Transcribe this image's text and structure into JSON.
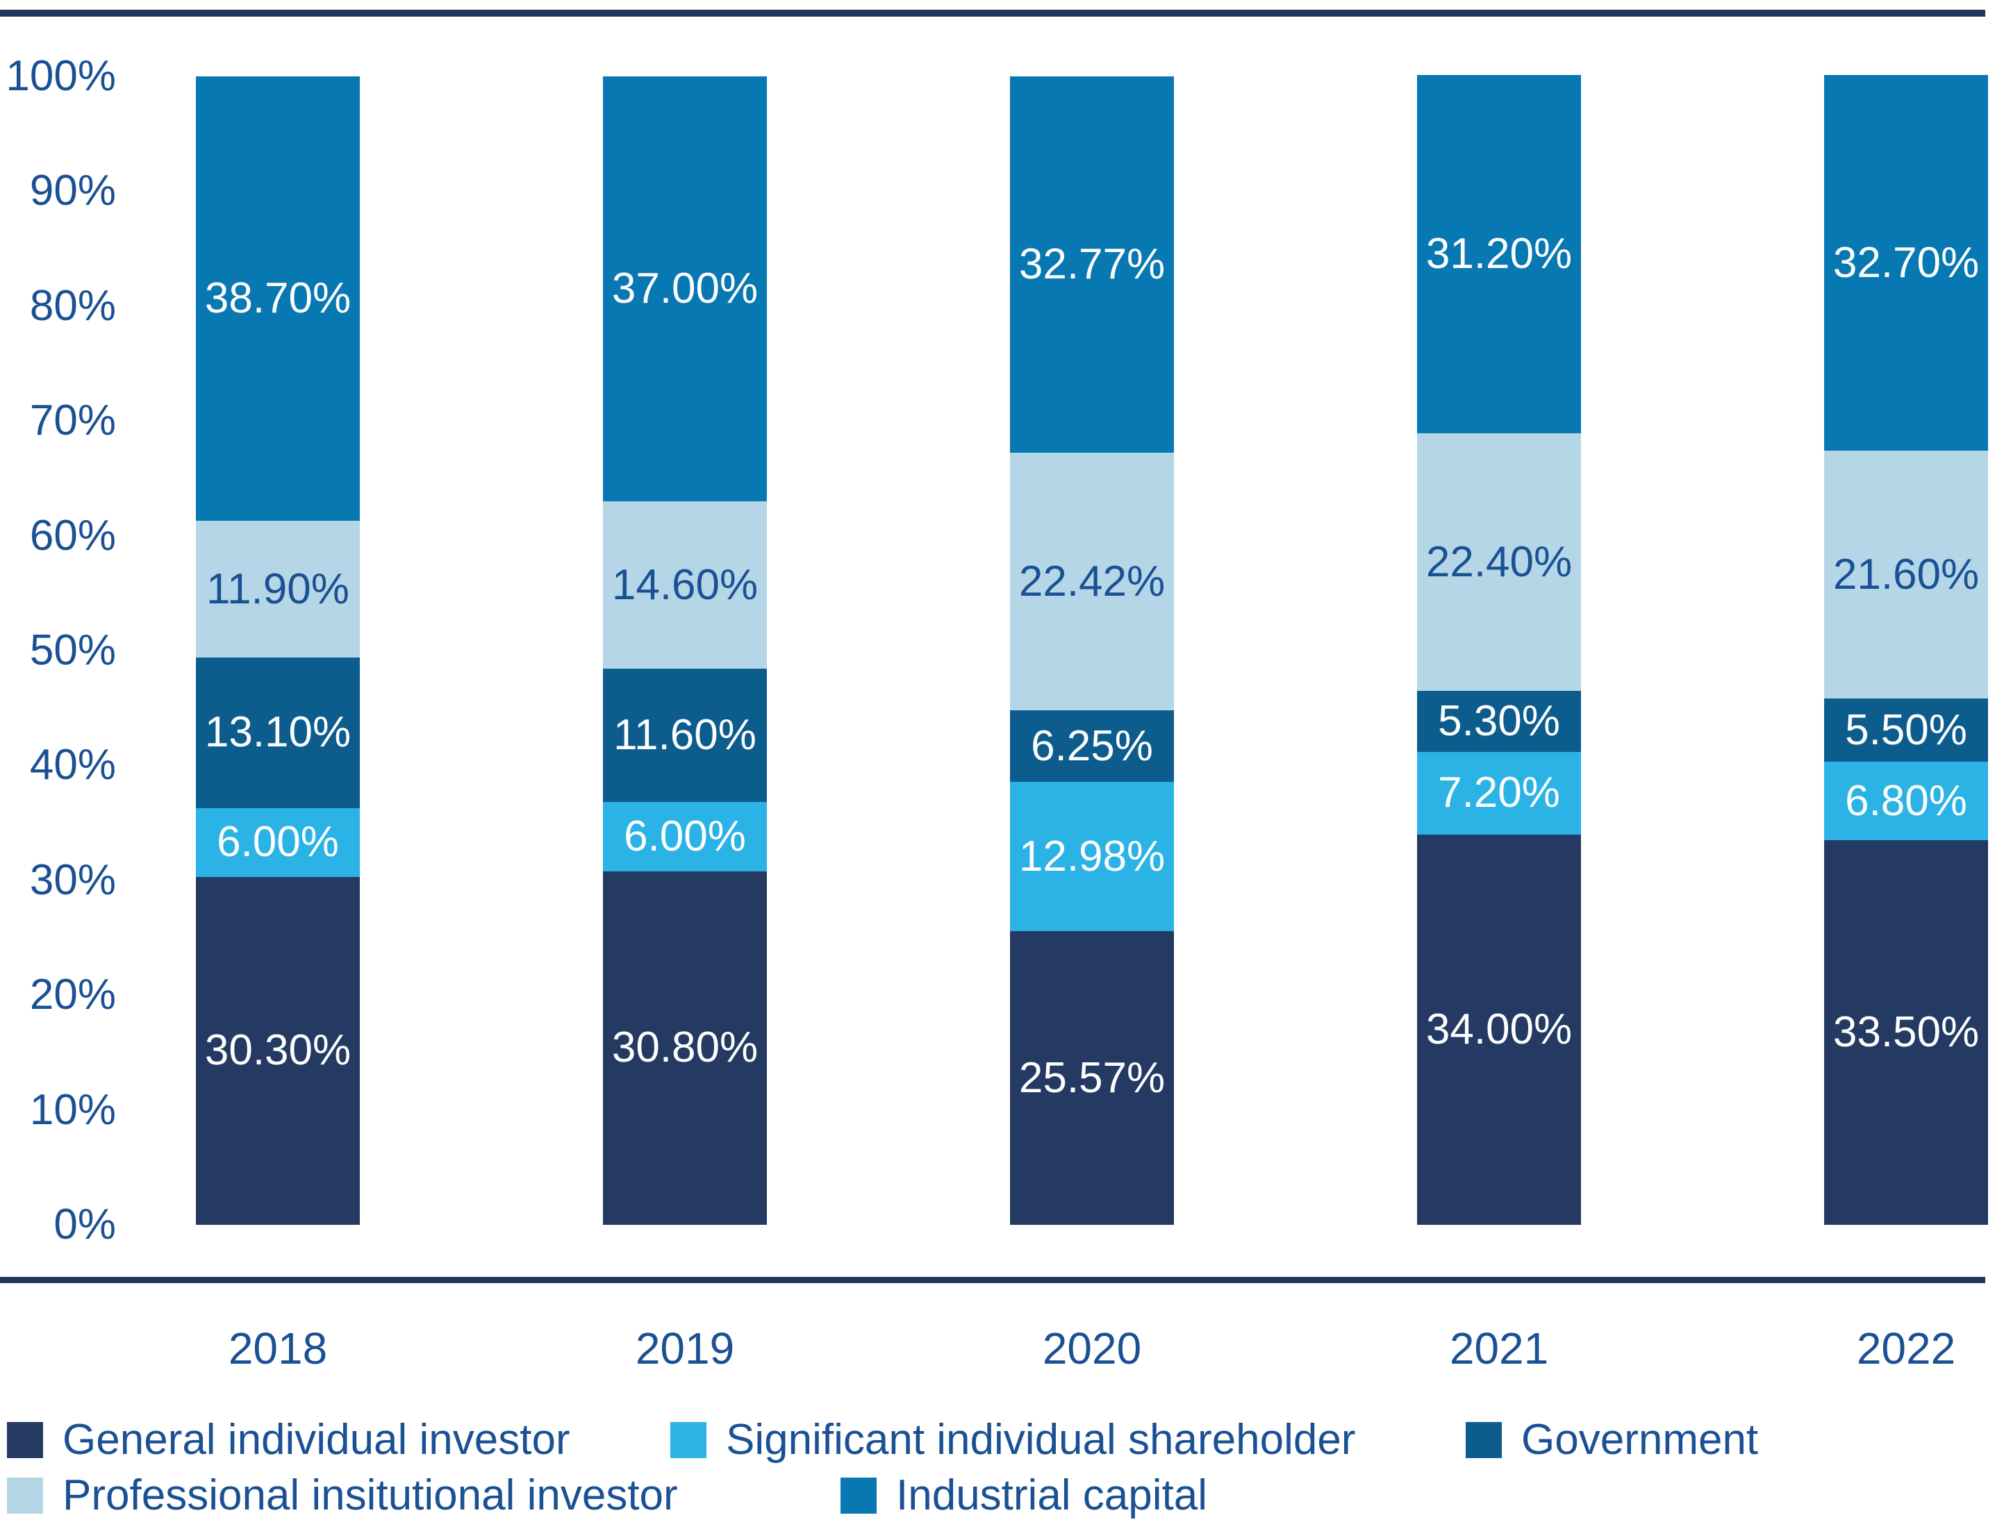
{
  "chart_data": {
    "type": "bar",
    "stacked": true,
    "percent_stacked": true,
    "categories": [
      "2018",
      "2019",
      "2020",
      "2021",
      "2022"
    ],
    "series": [
      {
        "name": "General individual investor",
        "color": "#243A63",
        "label_color": "#FFFFFF",
        "values": [
          30.3,
          30.8,
          25.57,
          34.0,
          33.5
        ]
      },
      {
        "name": "Significant individual shareholder",
        "color": "#2BB3E6",
        "label_color": "#FFFFFF",
        "values": [
          6.0,
          6.0,
          12.98,
          7.2,
          6.8
        ]
      },
      {
        "name": "Government",
        "color": "#0C5D8D",
        "label_color": "#FFFFFF",
        "values": [
          13.1,
          11.6,
          6.25,
          5.3,
          5.5
        ]
      },
      {
        "name": "Professional insitutional investor",
        "color": "#B4D6E6",
        "label_color": "#1A5094",
        "values": [
          11.9,
          14.6,
          22.42,
          22.4,
          21.6
        ]
      },
      {
        "name": "Industrial capital",
        "color": "#0878B2",
        "label_color": "#FFFFFF",
        "values": [
          38.7,
          37.0,
          32.77,
          31.2,
          32.7
        ]
      }
    ],
    "data_labels": [
      [
        "30.30%",
        "30.80%",
        "25.57%",
        "34.00%",
        "33.50%"
      ],
      [
        "6.00%",
        "6.00%",
        "12.98%",
        "7.20%",
        "6.80%"
      ],
      [
        "13.10%",
        "11.60%",
        "6.25%",
        "5.30%",
        "5.50%"
      ],
      [
        "11.90%",
        "14.60%",
        "22.42%",
        "22.40%",
        "21.60%"
      ],
      [
        "38.70%",
        "37.00%",
        "32.77%",
        "31.20%",
        "32.70%"
      ]
    ],
    "y_ticks": [
      "0%",
      "10%",
      "20%",
      "30%",
      "40%",
      "50%",
      "60%",
      "70%",
      "80%",
      "90%",
      "100%"
    ],
    "ylim": [
      0,
      100
    ],
    "grid": false,
    "legend_position": "bottom-left",
    "legend_rows": [
      [
        "General individual investor",
        "Significant individual shareholder",
        "Government"
      ],
      [
        "Professional insitutional investor",
        "Industrial capital"
      ]
    ]
  },
  "colors": {
    "axis_text": "#1A5094",
    "border_rule": "#21365C",
    "background": "#FFFFFF"
  }
}
